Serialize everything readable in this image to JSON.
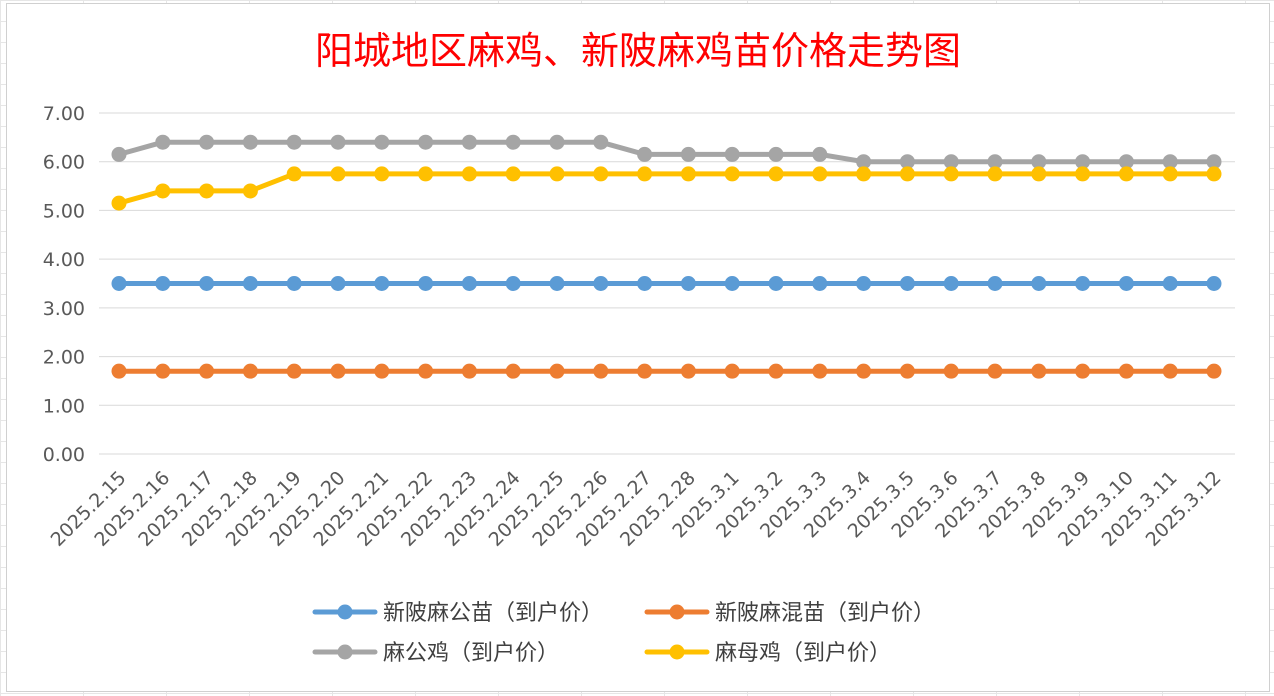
{
  "chart_data": {
    "type": "line",
    "title": "阳城地区麻鸡、新陂麻鸡苗价格走势图",
    "xlabel": "",
    "ylabel": "",
    "ylim": [
      0,
      7
    ],
    "y_ticks": [
      "0.00",
      "1.00",
      "2.00",
      "3.00",
      "4.00",
      "5.00",
      "6.00",
      "7.00"
    ],
    "grid": true,
    "legend_position": "bottom",
    "categories": [
      "2025.2.15",
      "2025.2.16",
      "2025.2.17",
      "2025.2.18",
      "2025.2.19",
      "2025.2.20",
      "2025.2.21",
      "2025.2.22",
      "2025.2.23",
      "2025.2.24",
      "2025.2.25",
      "2025.2.26",
      "2025.2.27",
      "2025.2.28",
      "2025.3.1",
      "2025.3.2",
      "2025.3.3",
      "2025.3.4",
      "2025.3.5",
      "2025.3.6",
      "2025.3.7",
      "2025.3.8",
      "2025.3.9",
      "2025.3.10",
      "2025.3.11",
      "2025.3.12"
    ],
    "series": [
      {
        "name": "新陂麻公苗（到户价）",
        "color": "#5b9bd5",
        "values": [
          3.5,
          3.5,
          3.5,
          3.5,
          3.5,
          3.5,
          3.5,
          3.5,
          3.5,
          3.5,
          3.5,
          3.5,
          3.5,
          3.5,
          3.5,
          3.5,
          3.5,
          3.5,
          3.5,
          3.5,
          3.5,
          3.5,
          3.5,
          3.5,
          3.5,
          3.5
        ]
      },
      {
        "name": "新陂麻混苗（到户价）",
        "color": "#ed7d31",
        "values": [
          1.7,
          1.7,
          1.7,
          1.7,
          1.7,
          1.7,
          1.7,
          1.7,
          1.7,
          1.7,
          1.7,
          1.7,
          1.7,
          1.7,
          1.7,
          1.7,
          1.7,
          1.7,
          1.7,
          1.7,
          1.7,
          1.7,
          1.7,
          1.7,
          1.7,
          1.7
        ]
      },
      {
        "name": "麻公鸡（到户价）",
        "color": "#a5a5a5",
        "values": [
          6.15,
          6.4,
          6.4,
          6.4,
          6.4,
          6.4,
          6.4,
          6.4,
          6.4,
          6.4,
          6.4,
          6.4,
          6.15,
          6.15,
          6.15,
          6.15,
          6.15,
          6.0,
          6.0,
          6.0,
          6.0,
          6.0,
          6.0,
          6.0,
          6.0,
          6.0
        ]
      },
      {
        "name": "麻母鸡（到户价）",
        "color": "#ffc000",
        "values": [
          5.15,
          5.4,
          5.4,
          5.4,
          5.75,
          5.75,
          5.75,
          5.75,
          5.75,
          5.75,
          5.75,
          5.75,
          5.75,
          5.75,
          5.75,
          5.75,
          5.75,
          5.75,
          5.75,
          5.75,
          5.75,
          5.75,
          5.75,
          5.75,
          5.75,
          5.75
        ]
      }
    ]
  }
}
